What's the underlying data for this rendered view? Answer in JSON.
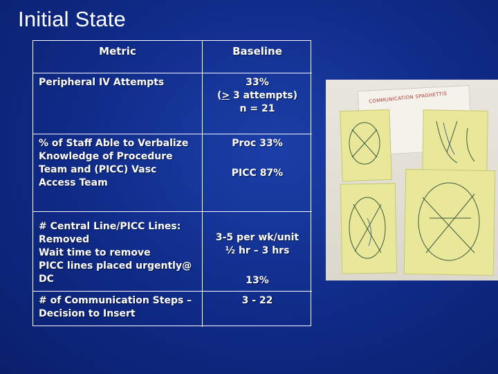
{
  "slide": {
    "title": "Initial State"
  },
  "table": {
    "headers": {
      "metric": "Metric",
      "baseline": "Baseline"
    },
    "rows": [
      {
        "metric": [
          "Peripheral IV Attempts"
        ],
        "baseline": [
          "33%",
          "(> 3 attempts)",
          "n = 21"
        ]
      },
      {
        "metric": [
          "% of Staff Able to Verbalize Knowledge of Procedure Team and (PICC) Vasc Access Team"
        ],
        "baseline": [
          "Proc  33%",
          "PICC  87%"
        ]
      },
      {
        "metric": [
          "# Central Line/PICC Lines:",
          "Removed",
          "Wait time to remove",
          "PICC lines placed urgently@ DC"
        ],
        "baseline": [
          "3-5 per wk/unit",
          "½ hr – 3 hrs",
          "13%"
        ]
      },
      {
        "metric": [
          "# of Communication Steps – Decision to Insert"
        ],
        "baseline": [
          "3 - 22"
        ]
      }
    ]
  },
  "photo": {
    "heading": "COMMUNICATION SPAGHETTIS"
  }
}
